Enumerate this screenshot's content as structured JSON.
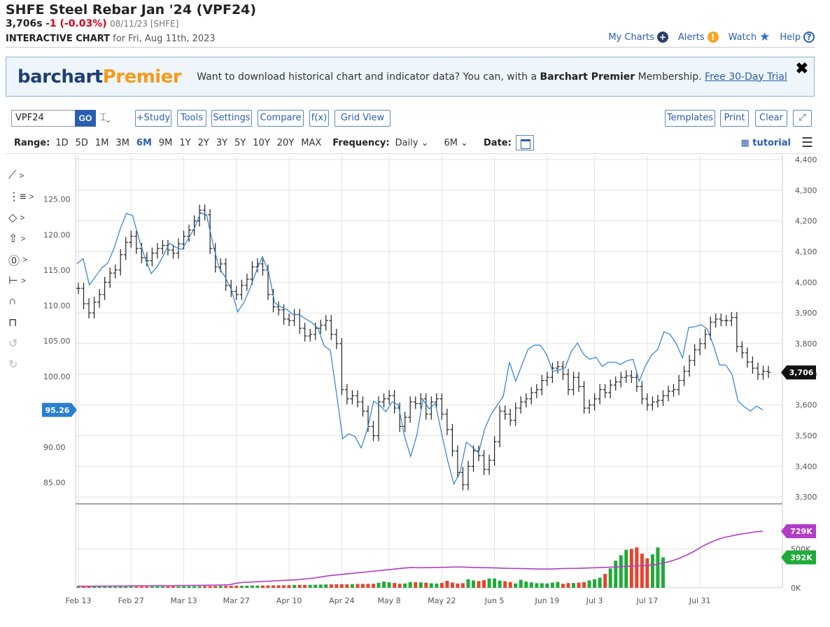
{
  "header": {
    "title": "SHFE Steel Rebar Jan '24 (VPF24)",
    "last": "3,706s",
    "change": "-1 (-0.03%)",
    "meta": "08/11/23 [SHFE]",
    "sub_label": "INTERACTIVE CHART",
    "sub_date": "for Fri, Aug 11th, 2023"
  },
  "toplinks": {
    "my_charts": "My Charts",
    "alerts": "Alerts",
    "watch": "Watch",
    "help": "Help"
  },
  "banner": {
    "brand_1": "barchart",
    "brand_2": "Premier",
    "text_1": "Want to download historical chart and indicator data? You can, with a",
    "text_bold": "Barchart Premier",
    "text_2": "Membership.",
    "link": "Free 30-Day Trial",
    "close": "✖"
  },
  "toolbar": {
    "symbol": "VPF24",
    "go": "GO",
    "bar_icon": "⌶⌄",
    "study": "+Study",
    "tools": "Tools",
    "settings": "Settings",
    "compare": "Compare",
    "fx": "f(x)",
    "grid_view": "Grid View",
    "templates": "Templates",
    "print": "Print",
    "clear": "Clear",
    "expand": "⤢"
  },
  "toolbar2": {
    "range_label": "Range:",
    "ranges": [
      "1D",
      "5D",
      "1M",
      "3M",
      "6M",
      "9M",
      "1Y",
      "2Y",
      "3Y",
      "5Y",
      "10Y",
      "20Y",
      "MAX"
    ],
    "active_range": "6M",
    "frequency_label": "Frequency:",
    "frequency": "Daily ⌄",
    "period": "6M ⌄",
    "date_label": "Date:",
    "tutorial": "tutorial",
    "menu": "☰"
  },
  "tools": [
    {
      "icon": "line-tool-icon",
      "glyph": "⟋",
      "chevron": ">"
    },
    {
      "icon": "fib-tool-icon",
      "glyph": "⋮≡",
      "chevron": ">"
    },
    {
      "icon": "shape-tool-icon",
      "glyph": "◇",
      "chevron": ">"
    },
    {
      "icon": "arrow-tool-icon",
      "glyph": "⇧",
      "chevron": ">"
    },
    {
      "icon": "annotation-tool-icon",
      "glyph": "⓪",
      "chevron": ">"
    },
    {
      "icon": "measure-tool-icon",
      "glyph": "⊢",
      "chevron": ">"
    },
    {
      "icon": "magnet-icon",
      "glyph": "∩",
      "chevron": ""
    },
    {
      "icon": "lock-icon",
      "glyph": "⊓",
      "chevron": ""
    },
    {
      "icon": "undo-icon",
      "glyph": "↺",
      "chevron": ""
    },
    {
      "icon": "redo-icon",
      "glyph": "↻",
      "chevron": ""
    }
  ],
  "colors": {
    "price_bar": "#222222",
    "compare_line": "#2a7fd4",
    "open_interest": "#b23cc8",
    "vol_up": "#1faa3a",
    "vol_down": "#e8432e",
    "grid": "#e2e2e2",
    "last_badge": "#111111",
    "compare_badge": "#2a7fd4"
  },
  "chart_data": {
    "type": "ohlc",
    "symbol": "VPF24",
    "frequency": "Daily",
    "x_tick_labels": [
      "Feb 13",
      "Feb 27",
      "Mar 13",
      "Mar 27",
      "Apr 10",
      "Apr 24",
      "May 8",
      "May 22",
      "Jun 5",
      "Jun 19",
      "Jul 3",
      "Jul 17",
      "Jul 31"
    ],
    "right_axis": {
      "ticks": [
        3300,
        3400,
        3500,
        3600,
        3700,
        3800,
        3900,
        4000,
        4100,
        4200,
        4300,
        4400
      ],
      "labels": [
        "3,300",
        "3,400",
        "3,500",
        "3,600",
        "3,700",
        "3,800",
        "3,900",
        "4,000",
        "4,100",
        "4,200",
        "4,300",
        "4,400"
      ],
      "range": [
        3280,
        4400
      ]
    },
    "left_axis": {
      "ticks": [
        85,
        90,
        95,
        100,
        105,
        110,
        115,
        120,
        125
      ],
      "labels": [
        "85.00",
        "90.00",
        "95.00",
        "100.00",
        "105.00",
        "110.00",
        "115.00",
        "120.00",
        "125.00"
      ],
      "range": [
        82.1,
        130.6
      ]
    },
    "last_price_label": "3,706",
    "compare_last_label": "95.26",
    "oi_label": "729K",
    "volume_label": "392K",
    "volume_axis": {
      "ticks": [
        0,
        500000
      ],
      "labels": [
        "0K",
        "500K"
      ],
      "range": [
        0,
        1000000
      ]
    },
    "price_close": [
      3980,
      3930,
      3900,
      3935,
      3960,
      4000,
      4030,
      4040,
      4090,
      4130,
      4150,
      4110,
      4080,
      4070,
      4095,
      4110,
      4120,
      4105,
      4095,
      4125,
      4150,
      4170,
      4200,
      4235,
      4220,
      4110,
      4050,
      4060,
      3990,
      3970,
      3960,
      3990,
      4010,
      4050,
      4060,
      4040,
      3960,
      3920,
      3910,
      3880,
      3875,
      3895,
      3850,
      3825,
      3830,
      3850,
      3860,
      3875,
      3830,
      3800,
      3650,
      3620,
      3630,
      3610,
      3580,
      3530,
      3500,
      3610,
      3620,
      3630,
      3590,
      3530,
      3560,
      3610,
      3605,
      3620,
      3570,
      3610,
      3620,
      3570,
      3520,
      3450,
      3380,
      3340,
      3400,
      3450,
      3435,
      3390,
      3420,
      3480,
      3580,
      3570,
      3550,
      3590,
      3610,
      3620,
      3640,
      3650,
      3680,
      3690,
      3720,
      3725,
      3700,
      3650,
      3690,
      3660,
      3590,
      3600,
      3620,
      3650,
      3640,
      3665,
      3675,
      3690,
      3695,
      3690,
      3660,
      3620,
      3600,
      3610,
      3615,
      3630,
      3645,
      3650,
      3680,
      3710,
      3745,
      3780,
      3800,
      3830,
      3870,
      3880,
      3875,
      3875,
      3885,
      3790,
      3770,
      3740,
      3720,
      3700,
      3710,
      3706
    ],
    "compare_values": [
      115.9,
      116.6,
      112.9,
      114.1,
      115.3,
      116.0,
      118.1,
      120.8,
      123.0,
      122.7,
      119.5,
      116.7,
      114.5,
      115.5,
      117.1,
      118.8,
      118.2,
      117.9,
      119.4,
      120.9,
      123.1,
      122.7,
      118.7,
      115.3,
      114.0,
      112.2,
      109.1,
      110.4,
      112.4,
      114.8,
      116.9,
      114.8,
      110.4,
      109.8,
      109.4,
      108.7,
      108.7,
      108.1,
      107.6,
      106.8,
      104.3,
      103.7,
      97.6,
      91.2,
      91.9,
      91.5,
      89.9,
      92.5,
      96.5,
      95.9,
      95.0,
      96.4,
      96.0,
      91.6,
      88.7,
      91.7,
      96.7,
      95.4,
      96.2,
      92.0,
      88.1,
      84.8,
      86.4,
      90.7,
      90.0,
      89.2,
      92.6,
      94.6,
      95.9,
      97.2,
      102.0,
      99.3,
      101.6,
      103.8,
      104.4,
      104.4,
      103.1,
      100.7,
      100.9,
      101.2,
      103.5,
      104.7,
      103.1,
      102.4,
      102.7,
      101.4,
      102.0,
      102.0,
      101.7,
      102.2,
      102.4,
      99.3,
      101.5,
      103.0,
      103.8,
      106.3,
      105.9,
      104.6,
      102.6,
      106.9,
      107.0,
      107.3,
      106.7,
      104.4,
      101.6,
      101.6,
      100.3,
      96.5,
      95.7,
      95.1,
      95.8,
      95.26
    ],
    "volume_values": [
      12000,
      12500,
      13000,
      13200,
      14000,
      14500,
      15000,
      14200,
      15300,
      15500,
      16000,
      15800,
      16500,
      16200,
      16800,
      17500,
      17000,
      17800,
      18000,
      18500,
      19000,
      19500,
      20000,
      21000,
      22000,
      23000,
      24000,
      25000,
      26000,
      26500,
      27000,
      26000,
      28000,
      28500,
      29000,
      30000,
      30500,
      31000,
      32000,
      33000,
      34000,
      35000,
      36000,
      37000,
      38000,
      40000,
      42000,
      44000,
      45000,
      46000,
      47000,
      45000,
      48000,
      50000,
      49000,
      51000,
      52000,
      64000,
      80000,
      70000,
      62000,
      52000,
      56000,
      74000,
      72000,
      70000,
      66000,
      58000,
      55000,
      62000,
      90000,
      68000,
      55000,
      60000,
      110000,
      95000,
      86000,
      99000,
      120000,
      120000,
      94000,
      85000,
      74000,
      56000,
      103000,
      80000,
      70000,
      60000,
      59000,
      55000,
      66000,
      76000,
      52000,
      61000,
      62000,
      67000,
      72000,
      95000,
      110000,
      130000,
      180000,
      250000,
      350000,
      420000,
      490000,
      500000,
      520000,
      440000,
      380000,
      430000,
      520000,
      392000
    ],
    "open_interest": [
      20000,
      20500,
      21000,
      21800,
      22500,
      23000,
      23500,
      24000,
      25000,
      26000,
      26800,
      27500,
      28000,
      29000,
      30000,
      31000,
      32000,
      33000,
      35000,
      37000,
      40000,
      60000,
      72000,
      75000,
      80000,
      85000,
      90000,
      95000,
      100000,
      105000,
      115000,
      125000,
      140000,
      155000,
      165000,
      175000,
      185000,
      195000,
      205000,
      215000,
      225000,
      235000,
      245000,
      255000,
      262000,
      258000,
      260000,
      262000,
      264000,
      266000,
      268000,
      266000,
      262000,
      260000,
      258000,
      256000,
      252000,
      250000,
      248000,
      246000,
      244000,
      242000,
      242000,
      245000,
      248000,
      250000,
      252000,
      255000,
      258000,
      262000,
      266000,
      270000,
      275000,
      280000,
      285000,
      290000,
      300000,
      320000,
      345000,
      380000,
      420000,
      470000,
      530000,
      580000,
      620000,
      650000,
      670000,
      690000,
      705000,
      720000,
      729000
    ]
  }
}
